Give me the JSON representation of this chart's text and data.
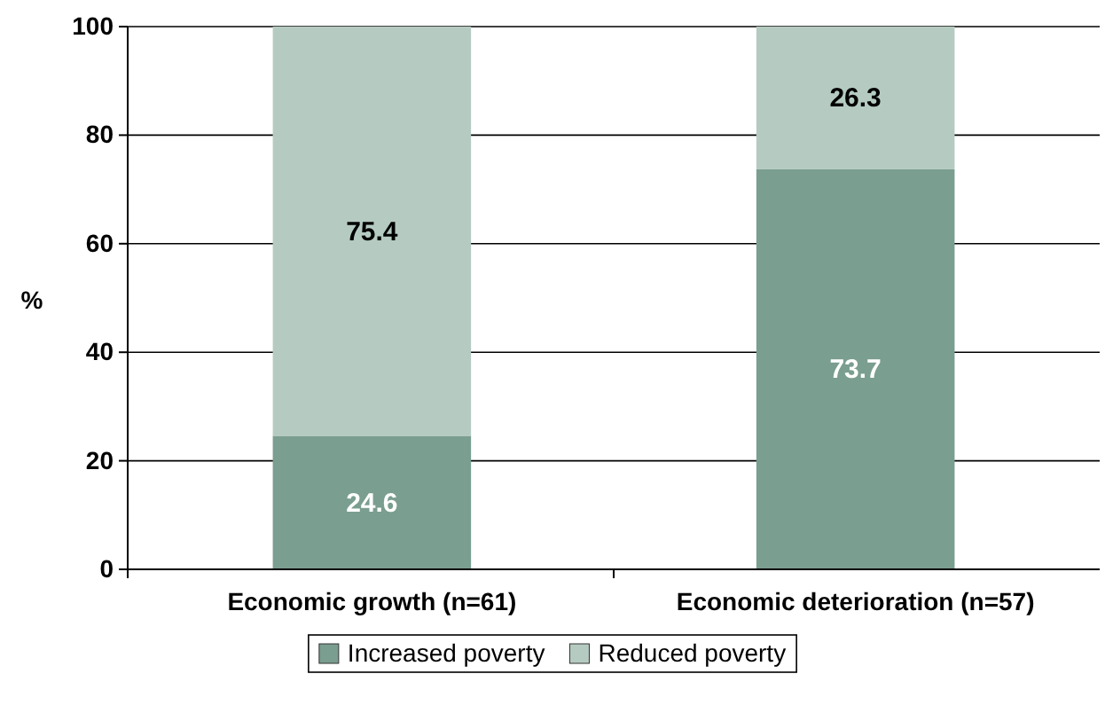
{
  "chart_data": {
    "type": "bar",
    "stacked": true,
    "ylabel": "%",
    "categories": [
      "Economic growth (n=61)",
      "Economic deterioration (n=57)"
    ],
    "series": [
      {
        "name": "Increased poverty",
        "color": "#7a9e8f",
        "values": [
          24.6,
          73.7
        ]
      },
      {
        "name": "Reduced poverty",
        "color": "#b5cbc1",
        "values": [
          75.4,
          26.3
        ]
      }
    ],
    "ylim": [
      0,
      100
    ],
    "yticks": [
      0,
      20,
      40,
      60,
      80,
      100
    ],
    "grid": "y",
    "legend": "bottom",
    "data_labels": true
  }
}
